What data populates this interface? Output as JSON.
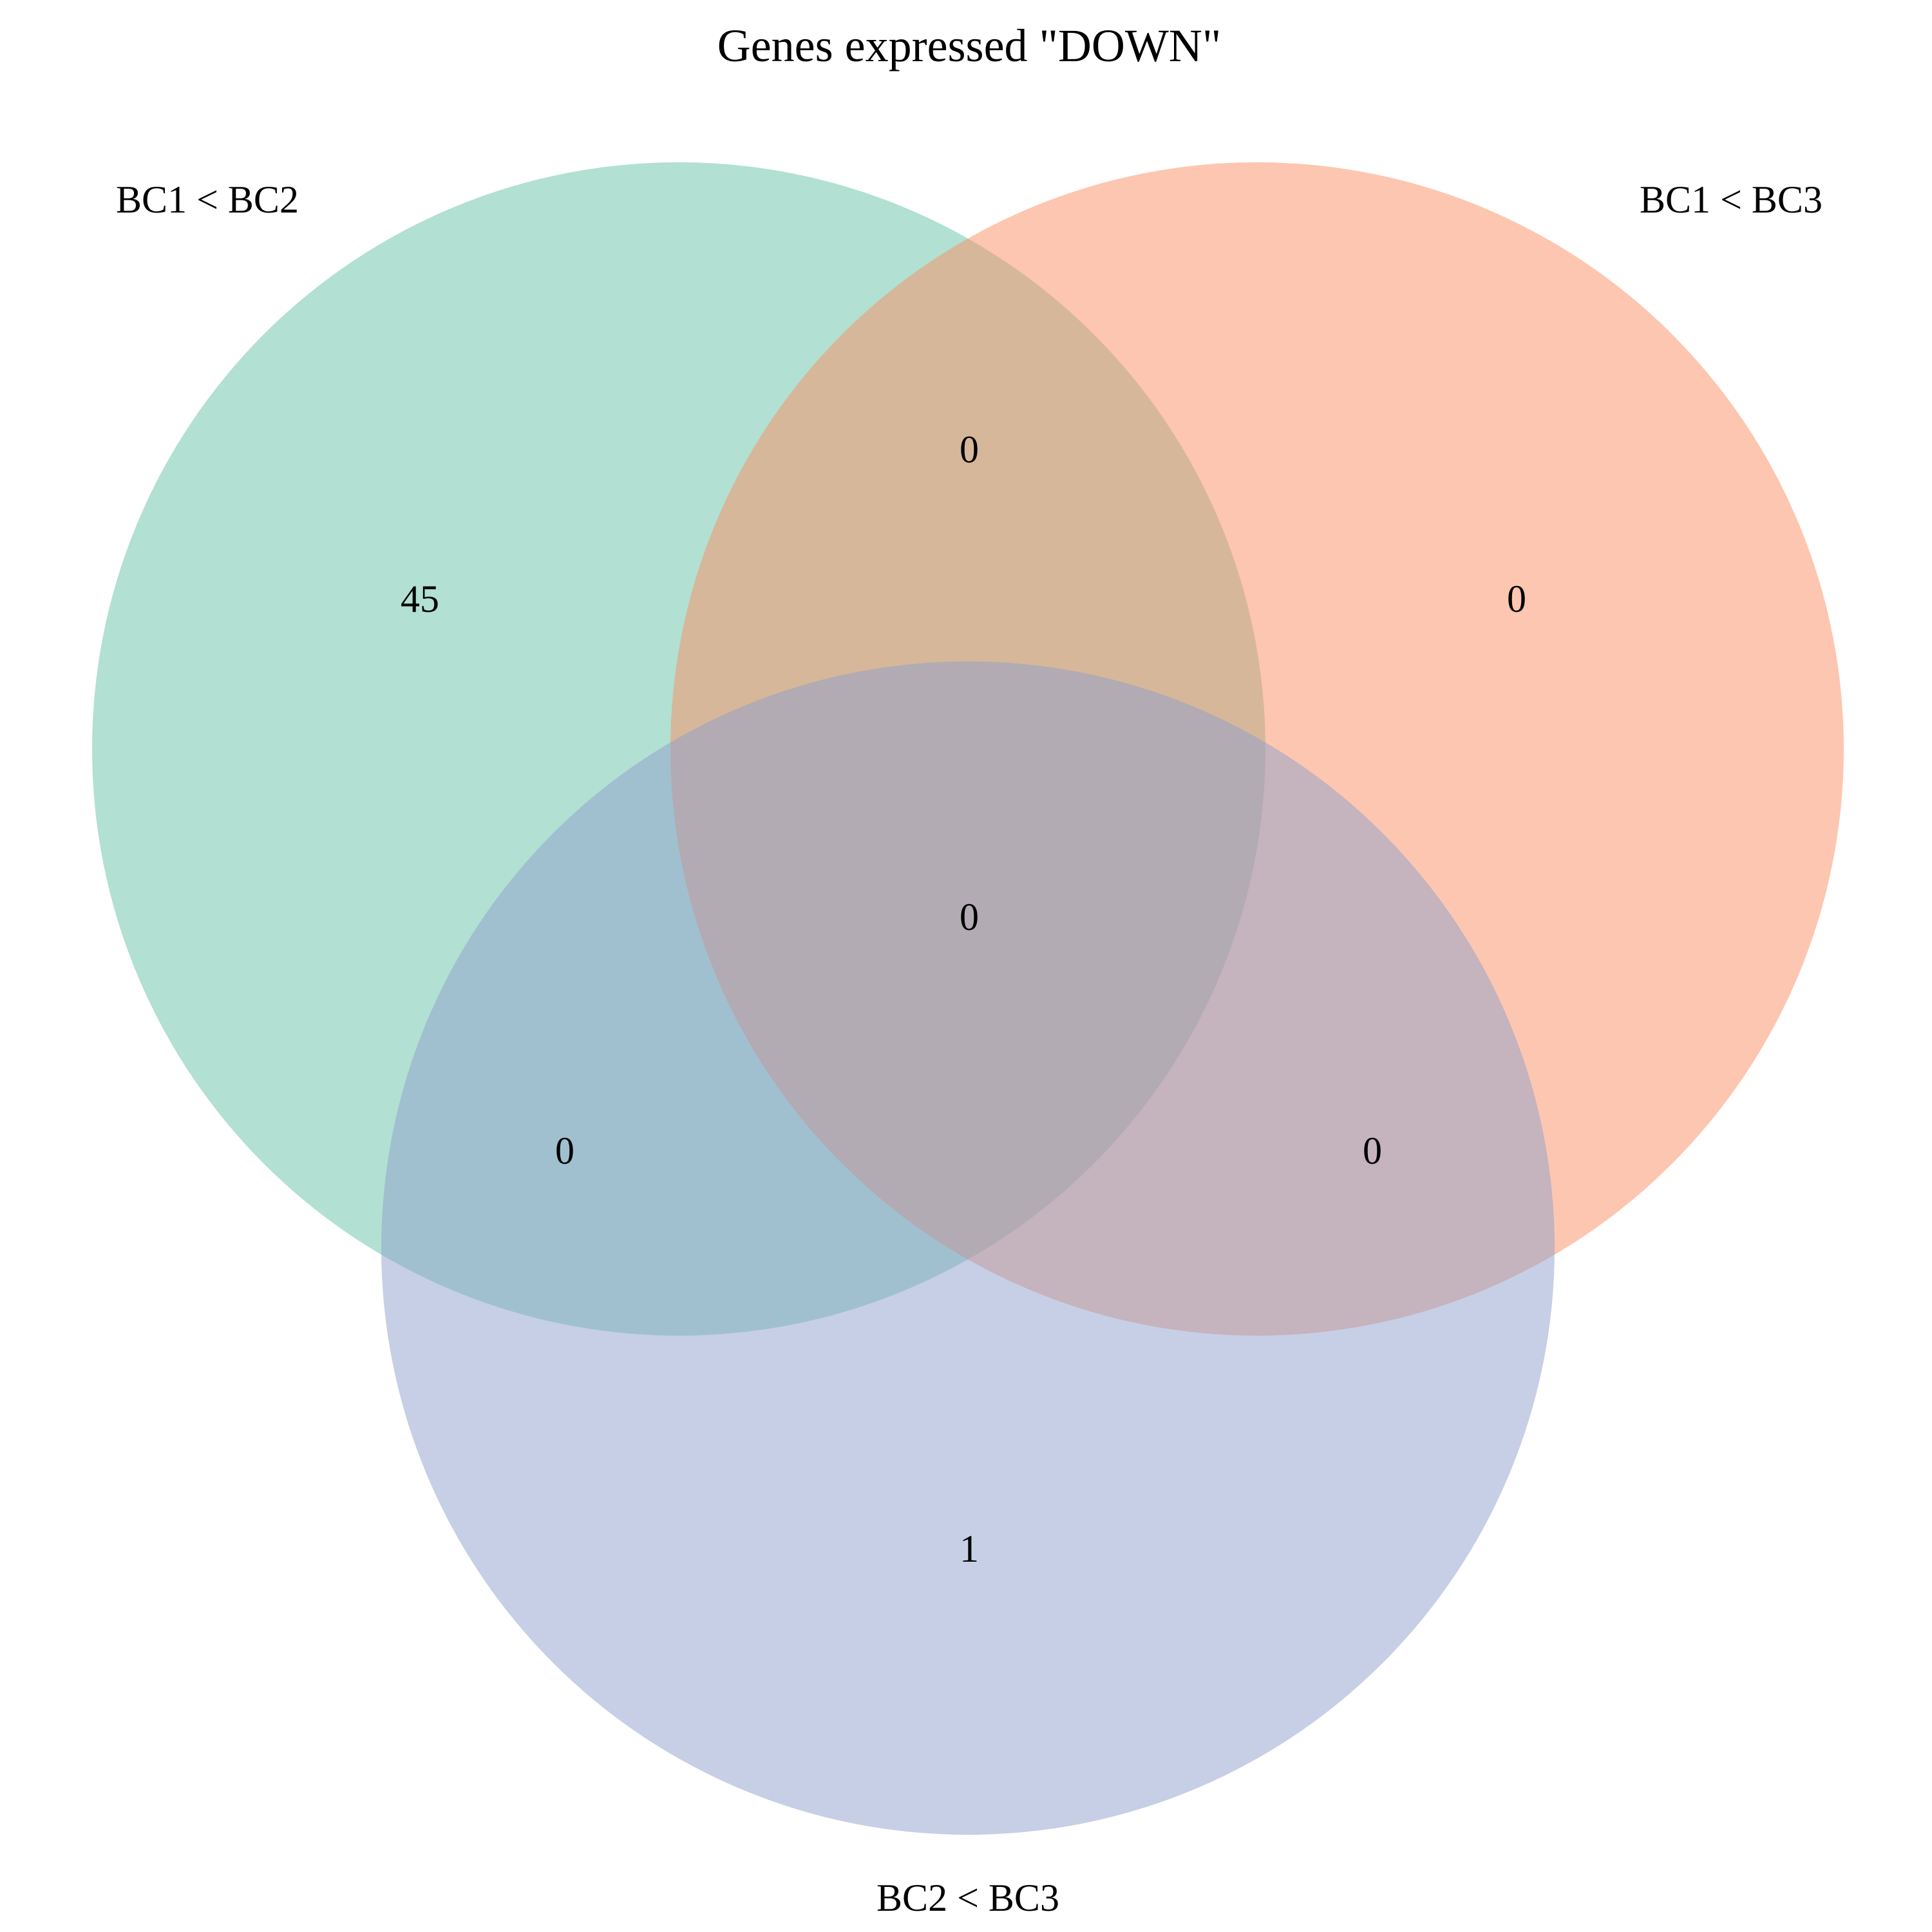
{
  "title": "Genes expressed \"DOWN\"",
  "sets": [
    {
      "name": "BC1 < BC2",
      "color": "#66c2a5"
    },
    {
      "name": "BC1 < BC3",
      "color": "#fc8d62"
    },
    {
      "name": "BC2 < BC3",
      "color": "#8da0cb"
    }
  ],
  "regions": {
    "only_1": "45",
    "only_2": "0",
    "only_3": "1",
    "set_1_and_2": "0",
    "set_1_and_3": "0",
    "set_2_and_3": "0",
    "all_three": "0"
  }
}
